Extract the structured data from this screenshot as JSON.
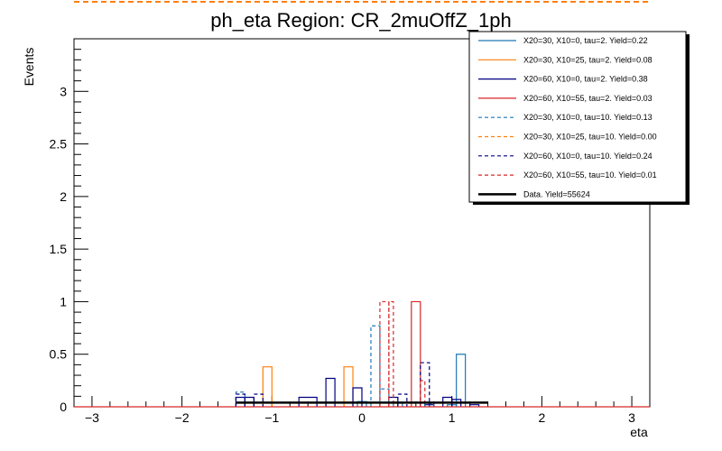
{
  "chart_data": {
    "type": "histogram",
    "title": "ph_eta Region: CR_2muOffZ_1ph",
    "xlabel": "eta",
    "ylabel": "Events",
    "xlim": [
      -3.2,
      3.2
    ],
    "ylim": [
      0,
      3.5
    ],
    "x_ticks": [
      -3,
      -2,
      -1,
      0,
      1,
      2,
      3
    ],
    "x_tick_labels": [
      "−3",
      "−2",
      "−1",
      "0",
      "1",
      "2",
      "3"
    ],
    "y_ticks": [
      0,
      0.5,
      1,
      1.5,
      2,
      2.5,
      3
    ],
    "y_tick_labels": [
      "0",
      "0.5",
      "1",
      "1.5",
      "2",
      "2.5",
      "3"
    ],
    "grid": false,
    "legend_position": "top-right",
    "series": [
      {
        "name": "X20=30, X10=0, tau=2. Yield=0.22",
        "color": "#1f77b4",
        "dashed": false,
        "bins": [
          [
            1.05,
            1.15,
            0.5
          ],
          [
            -0.05,
            0.05,
            0.05
          ],
          [
            0.35,
            0.45,
            0.04
          ],
          [
            0.95,
            1.05,
            0.02
          ]
        ]
      },
      {
        "name": "X20=30, X10=25, tau=2. Yield=0.08",
        "color": "#ff7f0e",
        "dashed": false,
        "bins": [
          [
            -1.1,
            -1.0,
            0.38
          ],
          [
            -0.2,
            -0.1,
            0.38
          ]
        ]
      },
      {
        "name": "X20=60, X10=0, tau=2. Yield=0.38",
        "color": "#000080",
        "dashed": false,
        "bins": [
          [
            -1.4,
            -1.3,
            0.09
          ],
          [
            -1.3,
            -1.2,
            0.09
          ],
          [
            -0.7,
            -0.5,
            0.09
          ],
          [
            -0.4,
            -0.3,
            0.27
          ],
          [
            -0.1,
            0.0,
            0.18
          ],
          [
            0.3,
            0.4,
            0.09
          ],
          [
            0.7,
            0.8,
            0.02
          ],
          [
            0.9,
            1.0,
            0.09
          ],
          [
            1.0,
            1.1,
            0.07
          ],
          [
            1.2,
            1.3,
            0.02
          ]
        ]
      },
      {
        "name": "X20=60, X10=55, tau=2. Yield=0.03",
        "color": "#d62728",
        "dashed": false,
        "bins": [
          [
            0.55,
            0.65,
            1.0
          ]
        ]
      },
      {
        "name": "X20=30, X10=0, tau=10. Yield=0.13",
        "color": "#1f77b4",
        "dashed": true,
        "bins": [
          [
            0.1,
            0.2,
            0.77
          ],
          [
            0.2,
            0.3,
            0.17
          ],
          [
            -1.4,
            -1.3,
            0.14
          ],
          [
            0.7,
            0.8,
            0.03
          ]
        ]
      },
      {
        "name": "X20=30, X10=25, tau=10. Yield=0.00",
        "color": "#ff7f0e",
        "dashed": true,
        "bins": []
      },
      {
        "name": "X20=60, X10=0, tau=10. Yield=0.24",
        "color": "#000080",
        "dashed": true,
        "bins": [
          [
            -1.4,
            -1.3,
            0.12
          ],
          [
            -1.2,
            -1.1,
            0.12
          ],
          [
            0.4,
            0.5,
            0.12
          ],
          [
            0.65,
            0.75,
            0.42
          ]
        ]
      },
      {
        "name": "X20=60, X10=55, tau=10. Yield=0.01",
        "color": "#d62728",
        "dashed": true,
        "bins": [
          [
            0.2,
            0.3,
            1.0
          ],
          [
            0.3,
            0.35,
            1.0
          ],
          [
            0.65,
            0.7,
            0.25
          ]
        ]
      },
      {
        "name": "Data. Yield=55624",
        "color": "#000000",
        "dashed": false,
        "bold": true,
        "x_range": [
          -1.4,
          1.4
        ],
        "value": 0.04
      }
    ]
  }
}
